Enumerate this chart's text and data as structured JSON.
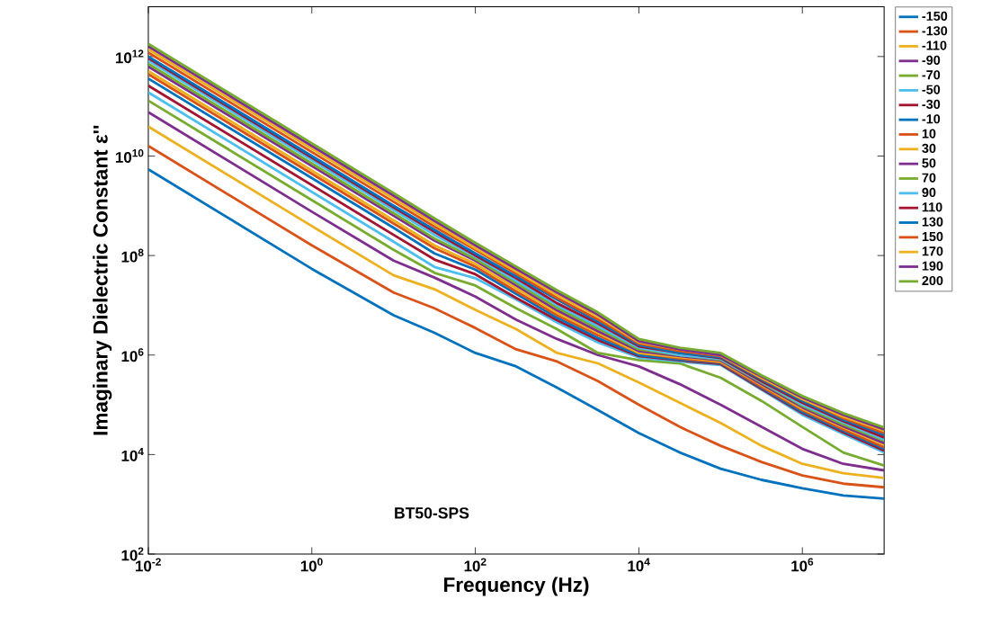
{
  "chart_data": {
    "type": "line",
    "xlabel": "Frequency (Hz)",
    "ylabel": "Imaginary Dielectric Constant ε''",
    "log": "xy",
    "grid": false,
    "legend": "right",
    "marker": "none",
    "line_style": "solid",
    "xlim": [
      0.01,
      10000000
    ],
    "ylim": [
      100,
      10000000000000
    ],
    "xticks": [
      {
        "value": 0.01,
        "label": "10$^{-2}$"
      },
      {
        "value": 1,
        "label": "10$^{0}$"
      },
      {
        "value": 100,
        "label": "10$^{2}$"
      },
      {
        "value": 10000,
        "label": "10$^{4}$"
      },
      {
        "value": 1000000,
        "label": "10$^{6}$"
      }
    ],
    "yticks": [
      {
        "value": 100,
        "label": "10$^{2}$"
      },
      {
        "value": 10000,
        "label": "10$^{4}$"
      },
      {
        "value": 1000000,
        "label": "10$^{6}$"
      },
      {
        "value": 100000000,
        "label": "10$^{8}$"
      },
      {
        "value": 10000000000,
        "label": "10$^{10}$"
      },
      {
        "value": 1000000000000,
        "label": "10$^{12}$"
      }
    ],
    "annotations": [
      "BT50-SPS"
    ],
    "x": [
      0.01,
      1,
      10,
      31.62,
      100,
      316.2,
      1000,
      3162,
      10000,
      31623,
      100000,
      316228,
      1000000,
      3162278,
      10000000
    ],
    "series": [
      {
        "name": "-150",
        "color": "#0072bd",
        "values": [
          5400000000.0,
          54000000.0,
          6300000.0,
          2800000.0,
          1100000.0,
          590000.0,
          220000.0,
          78000.0,
          27000.0,
          11000.0,
          5200.0,
          3100.0,
          2100.0,
          1500.0,
          1300.0
        ]
      },
      {
        "name": "-130",
        "color": "#d95319",
        "values": [
          16000000000.0,
          160000000.0,
          18000000.0,
          8700000.0,
          3500000.0,
          1300000.0,
          740000.0,
          300000.0,
          100000.0,
          36000.0,
          15000.0,
          7100.0,
          3800.0,
          2600.0,
          2200.0
        ]
      },
      {
        "name": "-110",
        "color": "#edb120",
        "values": [
          39000000000.0,
          390000000.0,
          40000000.0,
          21000000.0,
          8100000.0,
          3300000.0,
          1100000.0,
          680000.0,
          280000.0,
          110000.0,
          43000.0,
          15000.0,
          6500.0,
          4200.0,
          3400.0
        ]
      },
      {
        "name": "-90",
        "color": "#7e2f8e",
        "values": [
          76000000000.0,
          760000000.0,
          79000000.0,
          36000000.0,
          15000000.0,
          5100000.0,
          2100000.0,
          1000000.0,
          590000.0,
          260000.0,
          100000.0,
          36000.0,
          13000.0,
          6500.0,
          4800.0
        ]
      },
      {
        "name": "-70",
        "color": "#77ac30",
        "values": [
          130000000000.0,
          1300000000.0,
          130000000.0,
          45000000.0,
          25000000.0,
          8700000.0,
          3300000.0,
          1100000.0,
          790000.0,
          680000.0,
          350000.0,
          120000.0,
          36000.0,
          11000.0,
          6000.0
        ]
      },
      {
        "name": "-50",
        "color": "#4dbeee",
        "values": [
          190000000000.0,
          1900000000.0,
          190000000.0,
          59000000.0,
          35000000.0,
          13000000.0,
          4500000.0,
          1800000.0,
          890000.0,
          740000.0,
          630000.0,
          200000.0,
          63000.0,
          26000.0,
          11000.0
        ]
      },
      {
        "name": "-30",
        "color": "#a2142f",
        "values": [
          260000000000.0,
          2600000000.0,
          260000000.0,
          83000000.0,
          42000000.0,
          14000000.0,
          5000000.0,
          2000000.0,
          950000.0,
          780000.0,
          660000.0,
          210000.0,
          68000.0,
          28000.0,
          12000.0
        ]
      },
      {
        "name": "-10",
        "color": "#0072bd",
        "values": [
          360000000000.0,
          3600000000.0,
          360000000.0,
          110000000.0,
          52000000.0,
          17000000.0,
          5600000.0,
          2200000.0,
          1000000.0,
          810000.0,
          690000.0,
          220000.0,
          72000.0,
          30000.0,
          13000.0
        ]
      },
      {
        "name": "10",
        "color": "#d95319",
        "values": [
          440000000000.0,
          4400000000.0,
          440000000.0,
          140000000.0,
          60000000.0,
          19000000.0,
          6300000.0,
          2500000.0,
          1100000.0,
          850000.0,
          710000.0,
          230000.0,
          78000.0,
          32000.0,
          14000.0
        ]
      },
      {
        "name": "30",
        "color": "#edb120",
        "values": [
          510000000000.0,
          5100000000.0,
          510000000.0,
          160000000.0,
          68000000.0,
          22000000.0,
          7100000.0,
          2800000.0,
          1100000.0,
          910000.0,
          740000.0,
          250000.0,
          83000.0,
          35000.0,
          16000.0
        ]
      },
      {
        "name": "50",
        "color": "#7e2f8e",
        "values": [
          630000000000.0,
          6300000000.0,
          630000000.0,
          200000000.0,
          79000000.0,
          25000000.0,
          7900000.0,
          3000000.0,
          1200000.0,
          950000.0,
          780000.0,
          260000.0,
          89000.0,
          37000.0,
          17000.0
        ]
      },
      {
        "name": "70",
        "color": "#77ac30",
        "values": [
          710000000000.0,
          7100000000.0,
          710000000.0,
          220000000.0,
          85000000.0,
          28000000.0,
          8900000.0,
          3400000.0,
          1300000.0,
          1000000.0,
          810000.0,
          280000.0,
          95000.0,
          40000.0,
          19000.0
        ]
      },
      {
        "name": "90",
        "color": "#4dbeee",
        "values": [
          830000000000.0,
          8300000000.0,
          830000000.0,
          260000000.0,
          95000000.0,
          31000000.0,
          10000000.0,
          3800000.0,
          1400000.0,
          1000000.0,
          830000.0,
          290000.0,
          100000.0,
          44000.0,
          20000.0
        ]
      },
      {
        "name": "110",
        "color": "#a2142f",
        "values": [
          930000000000.0,
          9300000000.0,
          930000000.0,
          300000000.0,
          100000000.0,
          35000000.0,
          11000000.0,
          4300000.0,
          1500000.0,
          1100000.0,
          870000.0,
          300000.0,
          110000.0,
          47000.0,
          22000.0
        ]
      },
      {
        "name": "130",
        "color": "#0072bd",
        "values": [
          1000000000000.0,
          10000000000.0,
          1000000000.0,
          330000000.0,
          110000000.0,
          38000000.0,
          13000000.0,
          4700000.0,
          1600000.0,
          1100000.0,
          910000.0,
          320000.0,
          120000.0,
          50000.0,
          25000.0
        ]
      },
      {
        "name": "150",
        "color": "#d95319",
        "values": [
          1200000000000.0,
          12000000000.0,
          1200000000.0,
          380000000.0,
          130000000.0,
          43000000.0,
          14000000.0,
          5200000.0,
          1700000.0,
          1200000.0,
          950000.0,
          340000.0,
          130000.0,
          54000.0,
          27000.0
        ]
      },
      {
        "name": "170",
        "color": "#edb120",
        "values": [
          1400000000000.0,
          14000000000.0,
          1400000000.0,
          440000000.0,
          140000000.0,
          48000000.0,
          16000000.0,
          5900000.0,
          1800000.0,
          1300000.0,
          980000.0,
          350000.0,
          130000.0,
          58000.0,
          30000.0
        ]
      },
      {
        "name": "190",
        "color": "#7e2f8e",
        "values": [
          1600000000000.0,
          16000000000.0,
          1600000000.0,
          500000000.0,
          160000000.0,
          54000000.0,
          18000000.0,
          6500000.0,
          1900000.0,
          1300000.0,
          1000000.0,
          370000.0,
          140000.0,
          63000.0,
          32000.0
        ]
      },
      {
        "name": "200",
        "color": "#77ac30",
        "values": [
          1800000000000.0,
          18000000000.0,
          1800000000.0,
          560000000.0,
          180000000.0,
          60000000.0,
          20000000.0,
          7200000.0,
          2100000.0,
          1400000.0,
          1100000.0,
          390000.0,
          150000.0,
          68000.0,
          35000.0
        ]
      }
    ]
  }
}
